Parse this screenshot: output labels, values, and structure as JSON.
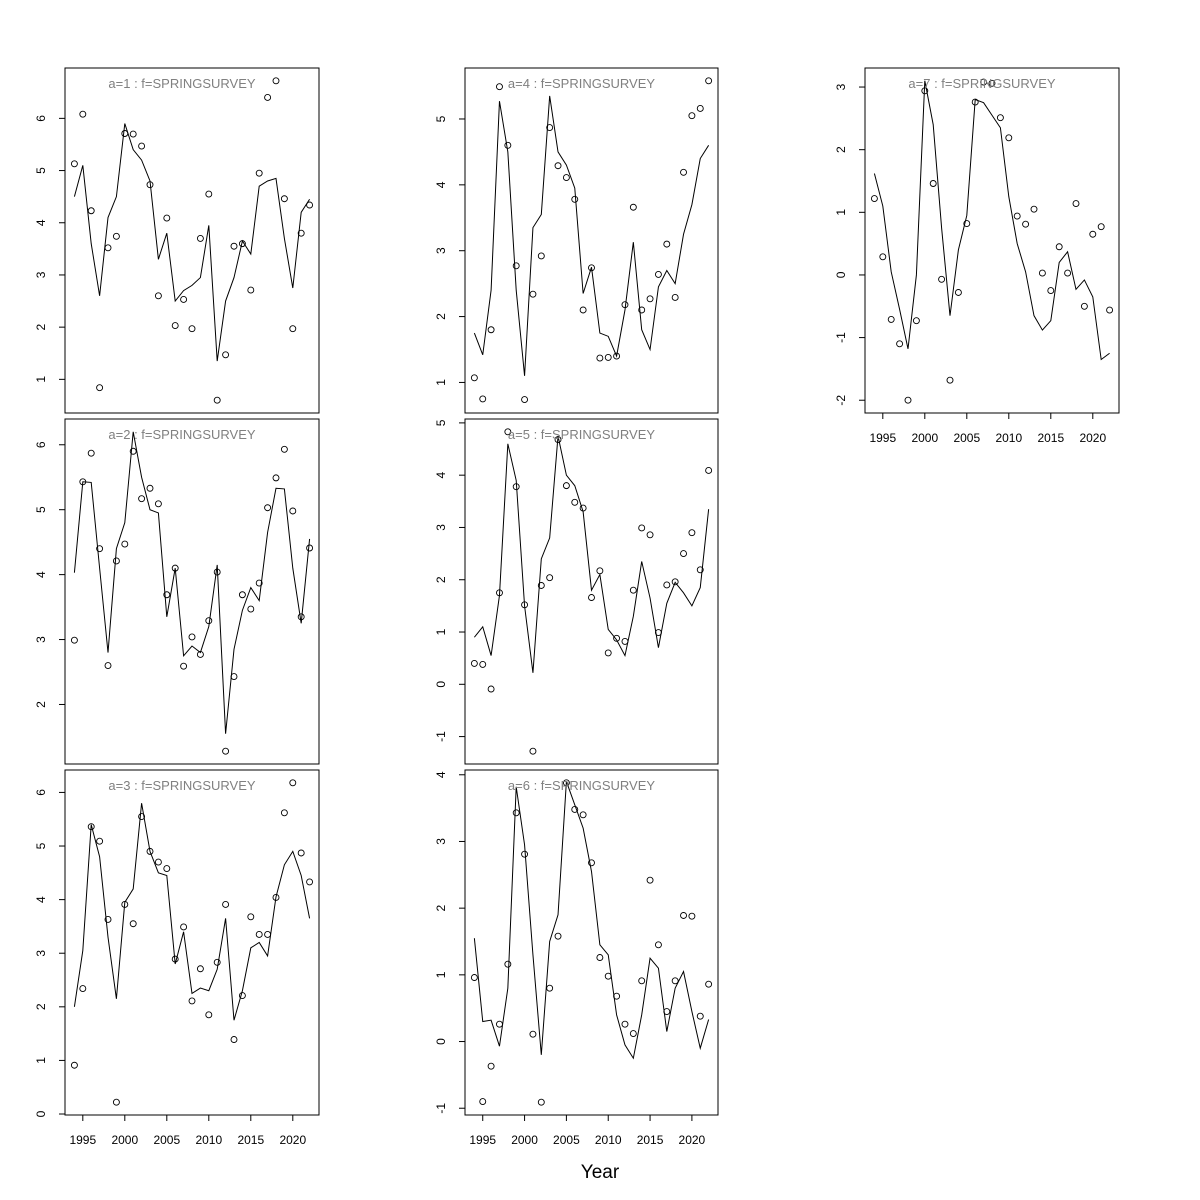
{
  "figure": {
    "xlabel": "Year"
  },
  "chart_data": [
    {
      "type": "line",
      "title": "a=1  :  f=SPRINGSURVEY",
      "xlabel": "",
      "ylabel": "",
      "xlim": [
        1994,
        2022
      ],
      "ylim": [
        0.6,
        6.72
      ],
      "yticks": [
        1,
        2,
        3,
        4,
        5,
        6
      ],
      "xticks": [],
      "x": [
        1994,
        1995,
        1996,
        1997,
        1998,
        1999,
        2000,
        2001,
        2002,
        2003,
        2004,
        2005,
        2006,
        2007,
        2008,
        2009,
        2010,
        2011,
        2012,
        2013,
        2014,
        2015,
        2016,
        2017,
        2018,
        2019,
        2020,
        2021,
        2022
      ],
      "series": [
        {
          "kind": "points",
          "values": [
            5.13,
            6.08,
            4.23,
            0.84,
            3.52,
            3.74,
            5.71,
            5.7,
            5.47,
            4.73,
            2.6,
            4.09,
            2.03,
            2.53,
            1.97,
            3.7,
            4.55,
            0.6,
            1.47,
            3.55,
            3.6,
            2.71,
            4.95,
            6.4,
            6.72,
            4.46,
            1.97,
            3.8,
            4.34
          ]
        },
        {
          "kind": "line",
          "values": [
            4.5,
            5.1,
            3.6,
            2.6,
            4.1,
            4.5,
            5.9,
            5.4,
            5.2,
            4.8,
            3.3,
            3.8,
            2.5,
            2.7,
            2.8,
            2.95,
            3.95,
            1.35,
            2.5,
            2.95,
            3.65,
            3.4,
            4.7,
            4.8,
            4.85,
            3.7,
            2.75,
            4.2,
            4.45
          ]
        }
      ]
    },
    {
      "type": "line",
      "title": "a=2  :  f=SPRINGSURVEY",
      "xlabel": "",
      "ylabel": "",
      "xlim": [
        1994,
        2022
      ],
      "ylim": [
        1.28,
        6.2
      ],
      "yticks": [
        2,
        3,
        4,
        5,
        6
      ],
      "xticks": [],
      "x": [
        1994,
        1995,
        1996,
        1997,
        1998,
        1999,
        2000,
        2001,
        2002,
        2003,
        2004,
        2005,
        2006,
        2007,
        2008,
        2009,
        2010,
        2011,
        2012,
        2013,
        2014,
        2015,
        2016,
        2017,
        2018,
        2019,
        2020,
        2021,
        2022
      ],
      "series": [
        {
          "kind": "points",
          "values": [
            2.99,
            5.43,
            5.87,
            4.4,
            2.6,
            4.21,
            4.47,
            5.9,
            5.17,
            5.33,
            5.09,
            3.69,
            4.1,
            2.59,
            3.04,
            2.77,
            3.29,
            4.04,
            1.28,
            2.43,
            3.69,
            3.47,
            3.87,
            5.03,
            5.49,
            5.93,
            4.98,
            3.35,
            4.41
          ]
        },
        {
          "kind": "line",
          "values": [
            4.03,
            5.43,
            5.42,
            4.1,
            2.8,
            4.4,
            4.8,
            6.2,
            5.5,
            5.0,
            4.95,
            3.35,
            4.1,
            2.75,
            2.9,
            2.8,
            3.2,
            4.15,
            1.55,
            2.85,
            3.45,
            3.8,
            3.6,
            4.65,
            5.33,
            5.32,
            4.1,
            3.25,
            4.55
          ]
        }
      ]
    },
    {
      "type": "line",
      "title": "a=3  :  f=SPRINGSURVEY",
      "xlabel": "",
      "ylabel": "",
      "xlim": [
        1994,
        2022
      ],
      "ylim": [
        0.22,
        6.18
      ],
      "yticks": [
        0,
        1,
        2,
        3,
        4,
        5,
        6
      ],
      "xticks": [
        1995,
        2000,
        2005,
        2010,
        2015,
        2020
      ],
      "x": [
        1994,
        1995,
        1996,
        1997,
        1998,
        1999,
        2000,
        2001,
        2002,
        2003,
        2004,
        2005,
        2006,
        2007,
        2008,
        2009,
        2010,
        2011,
        2012,
        2013,
        2014,
        2015,
        2016,
        2017,
        2018,
        2019,
        2020,
        2021,
        2022
      ],
      "series": [
        {
          "kind": "points",
          "values": [
            0.91,
            2.34,
            5.36,
            5.09,
            3.63,
            0.22,
            3.91,
            3.55,
            5.55,
            4.9,
            4.7,
            4.58,
            2.89,
            3.49,
            2.11,
            2.71,
            1.85,
            2.83,
            3.91,
            1.39,
            2.21,
            3.68,
            3.35,
            3.35,
            4.04,
            5.62,
            6.18,
            4.87,
            4.33
          ]
        },
        {
          "kind": "line",
          "values": [
            2.0,
            3.05,
            5.4,
            4.8,
            3.3,
            2.15,
            3.95,
            4.2,
            5.8,
            4.9,
            4.5,
            4.45,
            2.8,
            3.4,
            2.25,
            2.35,
            2.3,
            2.7,
            3.65,
            1.75,
            2.3,
            3.1,
            3.2,
            2.95,
            4.05,
            4.65,
            4.9,
            4.45,
            3.65
          ]
        }
      ]
    },
    {
      "type": "line",
      "title": "a=4  :  f=SPRINGSURVEY",
      "xlabel": "",
      "ylabel": "",
      "xlim": [
        1994,
        2022
      ],
      "ylim": [
        0.73,
        5.58
      ],
      "yticks": [
        1,
        2,
        3,
        4,
        5
      ],
      "xticks": [],
      "x": [
        1994,
        1995,
        1996,
        1997,
        1998,
        1999,
        2000,
        2001,
        2002,
        2003,
        2004,
        2005,
        2006,
        2007,
        2008,
        2009,
        2010,
        2011,
        2012,
        2013,
        2014,
        2015,
        2016,
        2017,
        2018,
        2019,
        2020,
        2021,
        2022
      ],
      "series": [
        {
          "kind": "points",
          "values": [
            1.07,
            0.75,
            1.8,
            5.49,
            4.6,
            2.77,
            0.74,
            2.34,
            2.92,
            4.87,
            4.29,
            4.11,
            3.78,
            2.1,
            2.74,
            1.37,
            1.38,
            1.4,
            2.18,
            3.66,
            2.1,
            2.27,
            2.64,
            3.1,
            2.29,
            4.19,
            5.05,
            5.16,
            5.58
          ]
        },
        {
          "kind": "line",
          "values": [
            1.75,
            1.42,
            2.4,
            5.27,
            4.5,
            2.4,
            1.1,
            3.35,
            3.55,
            5.35,
            4.5,
            4.3,
            3.95,
            2.35,
            2.75,
            1.75,
            1.7,
            1.4,
            2.1,
            3.13,
            1.8,
            1.5,
            2.45,
            2.7,
            2.5,
            3.25,
            3.7,
            4.4,
            4.6
          ]
        }
      ]
    },
    {
      "type": "line",
      "title": "a=5  :  f=SPRINGSURVEY",
      "xlabel": "",
      "ylabel": "",
      "xlim": [
        1994,
        2022
      ],
      "ylim": [
        -1.28,
        4.83
      ],
      "yticks": [
        -1,
        0,
        1,
        2,
        3,
        4,
        5
      ],
      "xticks": [],
      "x": [
        1994,
        1995,
        1996,
        1997,
        1998,
        1999,
        2000,
        2001,
        2002,
        2003,
        2004,
        2005,
        2006,
        2007,
        2008,
        2009,
        2010,
        2011,
        2012,
        2013,
        2014,
        2015,
        2016,
        2017,
        2018,
        2019,
        2020,
        2021,
        2022
      ],
      "series": [
        {
          "kind": "points",
          "values": [
            0.4,
            0.38,
            -0.09,
            1.75,
            4.83,
            3.78,
            1.52,
            -1.28,
            1.89,
            2.04,
            4.68,
            3.8,
            3.48,
            3.37,
            1.66,
            2.17,
            0.6,
            0.88,
            0.82,
            1.8,
            2.99,
            2.86,
            0.99,
            1.9,
            1.96,
            2.5,
            2.9,
            2.19,
            4.09
          ]
        },
        {
          "kind": "line",
          "values": [
            0.9,
            1.1,
            0.55,
            1.7,
            4.6,
            3.9,
            1.5,
            0.22,
            2.4,
            2.8,
            4.75,
            4.0,
            3.8,
            3.3,
            1.8,
            2.1,
            1.05,
            0.85,
            0.55,
            1.3,
            2.35,
            1.65,
            0.7,
            1.55,
            1.95,
            1.75,
            1.5,
            1.85,
            3.35
          ]
        }
      ]
    },
    {
      "type": "line",
      "title": "a=6  :  f=SPRINGSURVEY",
      "xlabel": "",
      "ylabel": "",
      "xlim": [
        1994,
        2022
      ],
      "ylim": [
        -0.91,
        3.88
      ],
      "yticks": [
        -1,
        0,
        1,
        2,
        3,
        4
      ],
      "xticks": [
        1995,
        2000,
        2005,
        2010,
        2015,
        2020
      ],
      "x": [
        1994,
        1995,
        1996,
        1997,
        1998,
        1999,
        2000,
        2001,
        2002,
        2003,
        2004,
        2005,
        2006,
        2007,
        2008,
        2009,
        2010,
        2011,
        2012,
        2013,
        2014,
        2015,
        2016,
        2017,
        2018,
        2019,
        2020,
        2021,
        2022
      ],
      "series": [
        {
          "kind": "points",
          "values": [
            0.96,
            -0.9,
            -0.37,
            0.26,
            1.16,
            3.43,
            2.81,
            0.11,
            -0.91,
            0.8,
            1.58,
            3.88,
            3.48,
            3.4,
            2.68,
            1.26,
            0.98,
            0.68,
            0.26,
            0.12,
            0.91,
            2.42,
            1.45,
            0.45,
            0.91,
            1.89,
            1.88,
            0.38,
            0.86
          ]
        },
        {
          "kind": "line",
          "values": [
            1.55,
            0.3,
            0.32,
            -0.07,
            0.8,
            3.82,
            2.95,
            1.3,
            -0.2,
            1.5,
            1.9,
            3.9,
            3.55,
            3.2,
            2.55,
            1.45,
            1.3,
            0.4,
            -0.05,
            -0.25,
            0.4,
            1.25,
            1.1,
            0.15,
            0.8,
            1.05,
            0.45,
            -0.1,
            0.33
          ]
        }
      ]
    },
    {
      "type": "line",
      "title": "a=7  :  f=SPRINGSURVEY",
      "xlabel": "",
      "ylabel": "",
      "xlim": [
        1994,
        2022
      ],
      "ylim": [
        -2.0,
        3.1
      ],
      "yticks": [
        -2,
        -1,
        0,
        1,
        2,
        3
      ],
      "xticks": [
        1995,
        2000,
        2005,
        2010,
        2015,
        2020
      ],
      "x": [
        1994,
        1995,
        1996,
        1997,
        1998,
        1999,
        2000,
        2001,
        2002,
        2003,
        2004,
        2005,
        2006,
        2007,
        2008,
        2009,
        2010,
        2011,
        2012,
        2013,
        2014,
        2015,
        2016,
        2017,
        2018,
        2019,
        2020,
        2021,
        2022
      ],
      "series": [
        {
          "kind": "points",
          "values": [
            1.22,
            0.29,
            -0.71,
            -1.1,
            -2.0,
            -0.73,
            2.94,
            1.46,
            -0.07,
            -1.68,
            -0.28,
            0.82,
            2.76,
            3.08,
            3.06,
            2.51,
            2.19,
            0.94,
            0.81,
            1.05,
            0.03,
            -0.25,
            0.45,
            0.03,
            1.14,
            -0.5,
            0.65,
            0.77,
            -0.56
          ]
        },
        {
          "kind": "line",
          "values": [
            1.62,
            1.1,
            0.05,
            -0.55,
            -1.18,
            0.0,
            3.1,
            2.4,
            0.75,
            -0.65,
            0.4,
            0.95,
            2.8,
            2.75,
            2.55,
            2.35,
            1.25,
            0.5,
            0.05,
            -0.65,
            -0.88,
            -0.73,
            0.2,
            0.37,
            -0.23,
            -0.08,
            -0.35,
            -1.35,
            -1.25
          ]
        }
      ]
    }
  ]
}
